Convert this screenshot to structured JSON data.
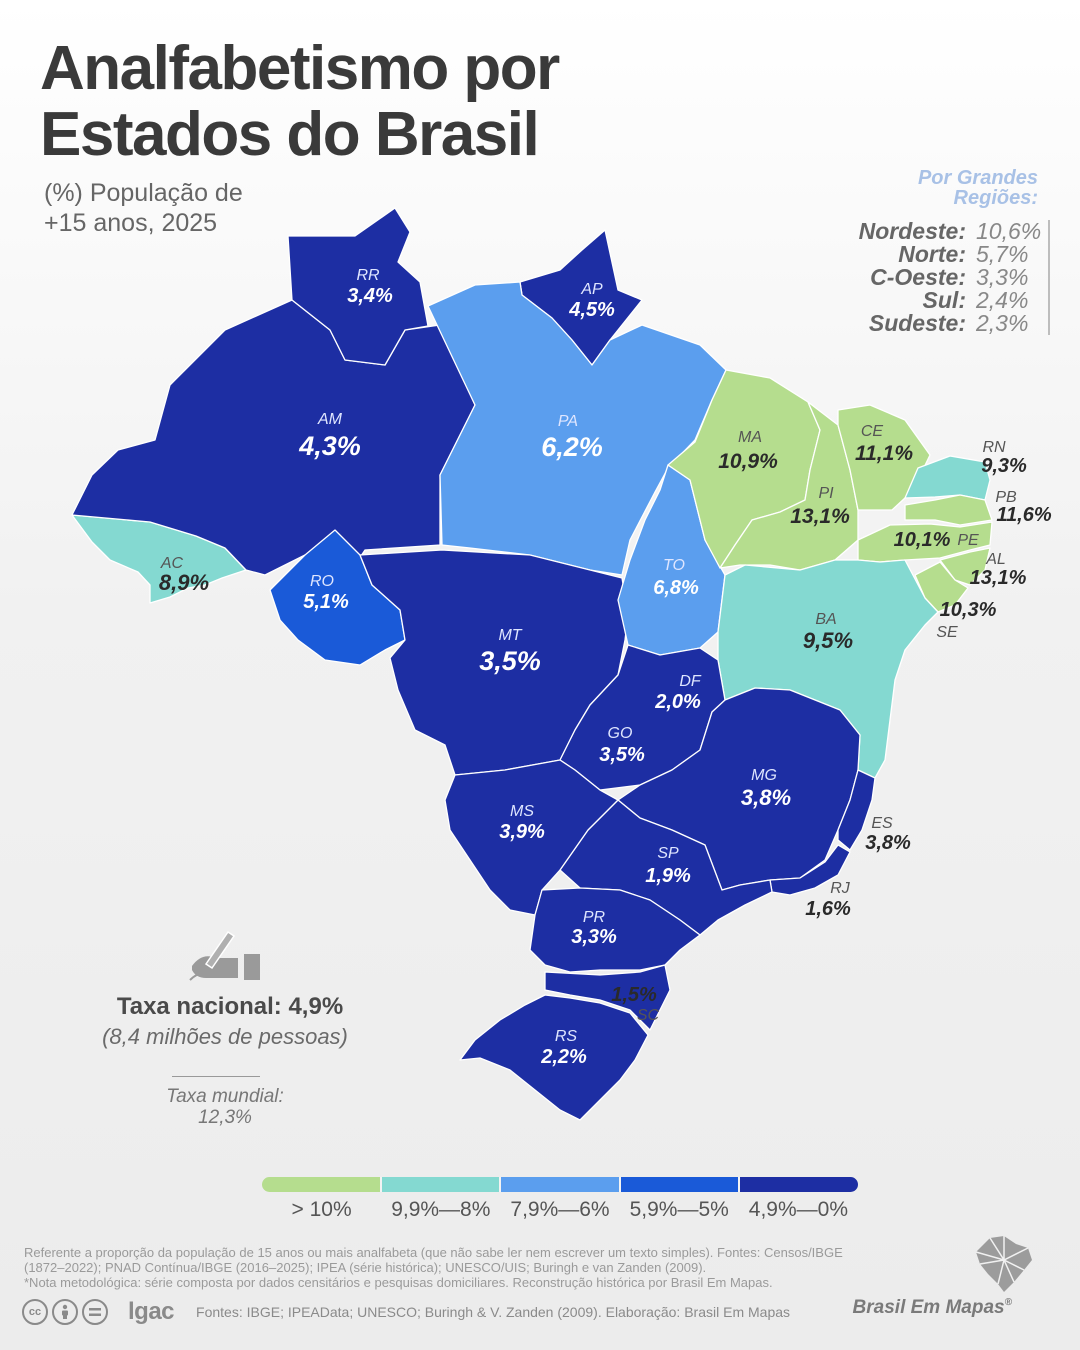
{
  "title_line1": "Analfabetismo por",
  "title_line2": "Estados do Brasil",
  "subtitle_line1": "(%) População de",
  "subtitle_line2": "+15 anos, 2025",
  "regions_heading_line1": "Por Grandes",
  "regions_heading_line2": "Regiões:",
  "regions": [
    {
      "name": "Nordeste:",
      "value": "10,6%"
    },
    {
      "name": "Norte:",
      "value": "5,7%"
    },
    {
      "name": "C-Oeste:",
      "value": "3,3%"
    },
    {
      "name": "Sul:",
      "value": "2,4%"
    },
    {
      "name": "Sudeste:",
      "value": "2,3%"
    }
  ],
  "states": [
    {
      "code": "AC",
      "value": "8,9%",
      "class": 1
    },
    {
      "code": "AM",
      "value": "4,3%",
      "class": 4
    },
    {
      "code": "RR",
      "value": "3,4%",
      "class": 4
    },
    {
      "code": "AP",
      "value": "4,5%",
      "class": 4
    },
    {
      "code": "PA",
      "value": "6,2%",
      "class": 2
    },
    {
      "code": "RO",
      "value": "5,1%",
      "class": 3
    },
    {
      "code": "MT",
      "value": "3,5%",
      "class": 4
    },
    {
      "code": "TO",
      "value": "6,8%",
      "class": 2
    },
    {
      "code": "MA",
      "value": "10,9%",
      "class": 0
    },
    {
      "code": "PI",
      "value": "13,1%",
      "class": 0
    },
    {
      "code": "CE",
      "value": "11,1%",
      "class": 0
    },
    {
      "code": "RN",
      "value": "9,3%",
      "class": 1
    },
    {
      "code": "PB",
      "value": "11,6%",
      "class": 0
    },
    {
      "code": "PE",
      "value": "10,1%",
      "class": 0
    },
    {
      "code": "AL",
      "value": "13,1%",
      "class": 0
    },
    {
      "code": "SE",
      "value": "10,3%",
      "class": 0
    },
    {
      "code": "BA",
      "value": "9,5%",
      "class": 1
    },
    {
      "code": "DF",
      "value": "2,0%",
      "class": 4
    },
    {
      "code": "GO",
      "value": "3,5%",
      "class": 4
    },
    {
      "code": "MG",
      "value": "3,8%",
      "class": 4
    },
    {
      "code": "ES",
      "value": "3,8%",
      "class": 4
    },
    {
      "code": "RJ",
      "value": "1,6%",
      "class": 4
    },
    {
      "code": "SP",
      "value": "1,9%",
      "class": 4
    },
    {
      "code": "MS",
      "value": "3,9%",
      "class": 4
    },
    {
      "code": "PR",
      "value": "3,3%",
      "class": 4
    },
    {
      "code": "SC",
      "value": "1,5%",
      "class": 4
    },
    {
      "code": "RS",
      "value": "2,2%",
      "class": 4
    }
  ],
  "national_rate": "Taxa nacional: 4,9%",
  "national_people": "(8,4 milhões de pessoas)",
  "world_rate_label": "Taxa mundial:",
  "world_rate_value": "12,3%",
  "legend": [
    {
      "label": "> 10%",
      "color": "#b5dd8e"
    },
    {
      "label": "9,9%—8%",
      "color": "#84d9d1"
    },
    {
      "label": "7,9%—6%",
      "color": "#5b9eee"
    },
    {
      "label": "5,9%—5%",
      "color": "#1a5ad8"
    },
    {
      "label": "4,9%—0%",
      "color": "#1d2ea3"
    }
  ],
  "footnote_1": "Referente a proporção da população de 15 anos ou mais analfabeta (que não sabe ler nem escrever um texto simples). Fontes: Censos/IBGE (1872–2022); PNAD Contínua/IBGE (2016–2025); IPEA (série histórica); UNESCO/UIS; Buringh e van Zanden (2009).",
  "footnote_2": "*Nota metodológica: série composta por dados censitários e pesquisas domiciliares. Reconstrução histórica por Brasil Em Mapas.",
  "logo_text": "lgac",
  "sources": "Fontes: IBGE; IPEAData; UNESCO; Buringh & V. Zanden (2009). Elaboração: Brasil Em Mapas",
  "brand": "Brasil Em Mapas"
}
